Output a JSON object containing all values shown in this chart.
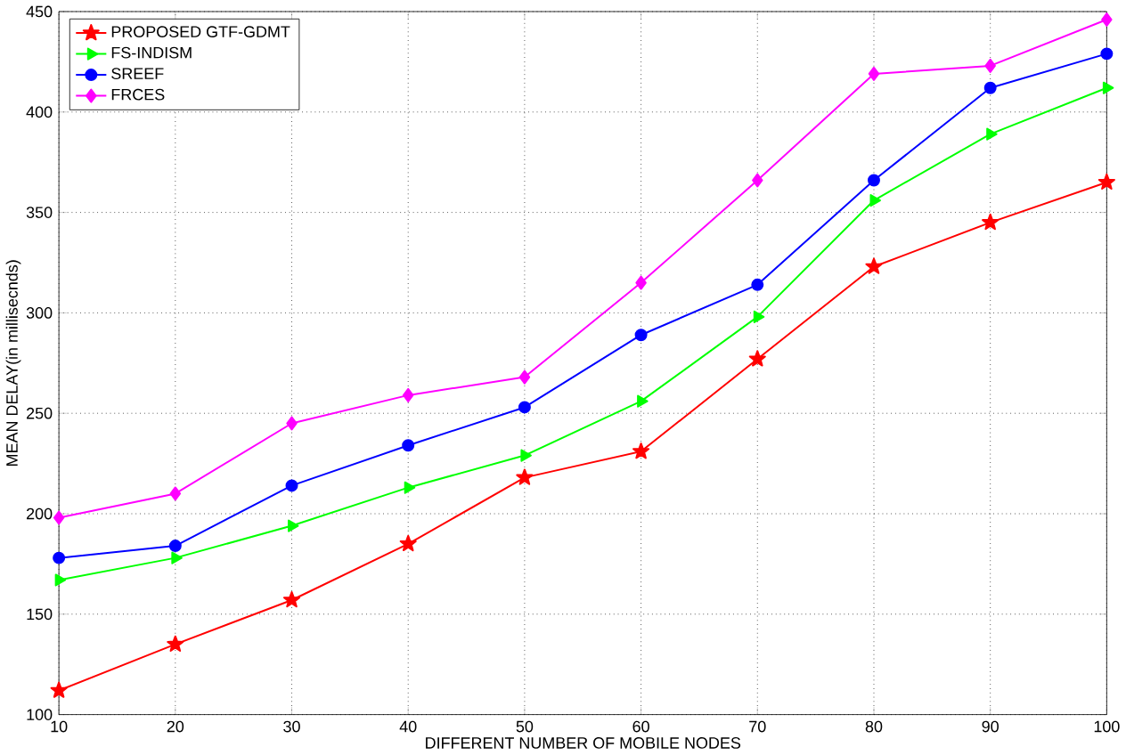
{
  "chart_data": {
    "type": "line",
    "xlabel": "DIFFERENT NUMBER OF MOBILE NODES",
    "ylabel": "MEAN DELAY(in millisecnds)",
    "x": [
      10,
      20,
      30,
      40,
      50,
      60,
      70,
      80,
      90,
      100
    ],
    "series": [
      {
        "name": "PROPOSED GTF-GDMT",
        "color": "#ff0000",
        "marker": "star",
        "values": [
          112,
          135,
          157,
          185,
          218,
          231,
          277,
          323,
          345,
          365
        ]
      },
      {
        "name": "FS-INDISM",
        "color": "#00ff00",
        "marker": "triangle",
        "values": [
          167,
          178,
          194,
          213,
          229,
          256,
          298,
          356,
          389,
          412
        ]
      },
      {
        "name": "SREEF",
        "color": "#0000ff",
        "marker": "circle",
        "values": [
          178,
          184,
          214,
          234,
          253,
          289,
          314,
          366,
          412,
          429
        ]
      },
      {
        "name": "FRCES",
        "color": "#ff00ff",
        "marker": "diamond",
        "values": [
          198,
          210,
          245,
          259,
          268,
          315,
          366,
          419,
          423,
          446
        ]
      }
    ],
    "xlim": [
      10,
      100
    ],
    "xticks": [
      10,
      20,
      30,
      40,
      50,
      60,
      70,
      80,
      90,
      100
    ],
    "ylim": [
      100,
      450
    ],
    "yticks": [
      100,
      150,
      200,
      250,
      300,
      350,
      400,
      450
    ],
    "grid": true,
    "legend": "top left",
    "line_style": "solid"
  }
}
